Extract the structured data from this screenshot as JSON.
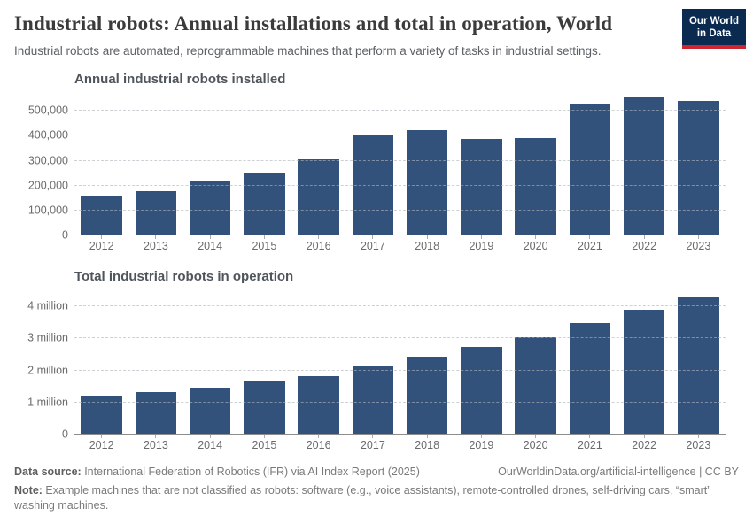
{
  "header": {
    "title": "Industrial robots: Annual installations and total in operation, World",
    "subtitle": "Industrial robots are automated, reprogrammable machines that perform a variety of tasks in industrial settings.",
    "logo": {
      "line1": "Our World",
      "line2": "in Data"
    }
  },
  "colors": {
    "bar": "#33527B",
    "logo_background": "#0A2A50",
    "logo_red": "#CD2531",
    "gridline": "#AEB3BA",
    "axis_line": "#8D8D8D"
  },
  "chart_data": [
    {
      "type": "bar",
      "title": "Annual industrial robots installed",
      "categories": [
        "2012",
        "2013",
        "2014",
        "2015",
        "2016",
        "2017",
        "2018",
        "2019",
        "2020",
        "2021",
        "2022",
        "2023"
      ],
      "values": [
        159000,
        178000,
        221000,
        254000,
        304000,
        400000,
        422000,
        387000,
        390000,
        526000,
        553000,
        541000
      ],
      "xlabel": "",
      "ylabel": "",
      "ylim": [
        0,
        556000
      ],
      "grid": true,
      "legend": "none",
      "bar_color": "#33527B",
      "yticks": [
        {
          "value": 0,
          "label": "0"
        },
        {
          "value": 100000,
          "label": "100,000"
        },
        {
          "value": 200000,
          "label": "200,000"
        },
        {
          "value": 300000,
          "label": "300,000"
        },
        {
          "value": 400000,
          "label": "400,000"
        },
        {
          "value": 500000,
          "label": "500,000"
        }
      ]
    },
    {
      "type": "bar",
      "title": "Total industrial robots in operation",
      "categories": [
        "2012",
        "2013",
        "2014",
        "2015",
        "2016",
        "2017",
        "2018",
        "2019",
        "2020",
        "2021",
        "2022",
        "2023"
      ],
      "values": [
        1230000,
        1330000,
        1470000,
        1660000,
        1840000,
        2120000,
        2440000,
        2730000,
        3030000,
        3480000,
        3900000,
        4280000
      ],
      "xlabel": "",
      "ylabel": "",
      "ylim": [
        0,
        4380000
      ],
      "grid": true,
      "legend": "none",
      "bar_color": "#33527B",
      "yticks": [
        {
          "value": 0,
          "label": "0"
        },
        {
          "value": 1000000,
          "label": "1 million"
        },
        {
          "value": 2000000,
          "label": "2 million"
        },
        {
          "value": 3000000,
          "label": "3 million"
        },
        {
          "value": 4000000,
          "label": "4 million"
        }
      ]
    }
  ],
  "footer": {
    "source_label": "Data source:",
    "source_text": " International Federation of Robotics (IFR) via AI Index Report (2025)",
    "attribution": "OurWorldinData.org/artificial-intelligence | CC BY",
    "note_label": "Note:",
    "note_text": " Example machines that are not classified as robots: software (e.g., voice assistants), remote-controlled drones, self-driving cars, “smart” washing machines."
  }
}
